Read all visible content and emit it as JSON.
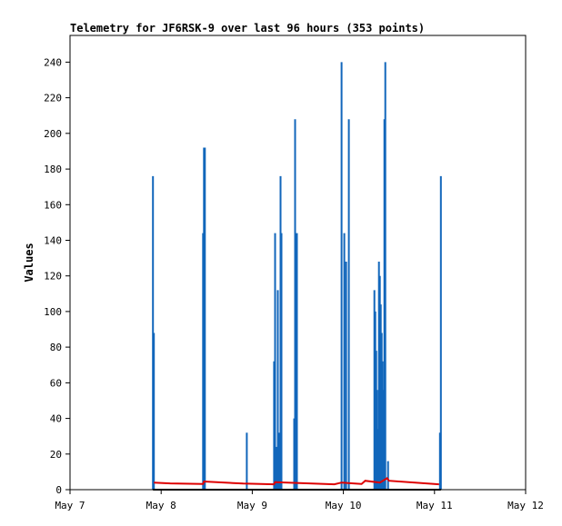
{
  "chart_data": {
    "type": "bar",
    "title": "Telemetry for JF6RSK-9 over last 96 hours (353 points)",
    "ylabel": "Values",
    "xlabel": "",
    "x_ticks": [
      "May 7",
      "May 8",
      "May 9",
      "May 10",
      "May 11",
      "May 12"
    ],
    "x_range_days": [
      7,
      12
    ],
    "y_ticks": [
      0,
      20,
      40,
      60,
      80,
      100,
      120,
      140,
      160,
      180,
      200,
      220,
      240
    ],
    "ylim": [
      0,
      255
    ],
    "grid": false,
    "legend": "none",
    "colors": {
      "spikes": "#1166bb",
      "baseline": "#dd0000",
      "zero": "#000000",
      "frame": "#000000"
    },
    "series": [
      {
        "style": "spikes",
        "points": [
          [
            7.91,
            176
          ],
          [
            7.92,
            88
          ],
          [
            8.46,
            144
          ],
          [
            8.47,
            192
          ],
          [
            8.48,
            192
          ],
          [
            8.94,
            32
          ],
          [
            9.24,
            72
          ],
          [
            9.25,
            144
          ],
          [
            9.27,
            24
          ],
          [
            9.28,
            112
          ],
          [
            9.29,
            32
          ],
          [
            9.31,
            176
          ],
          [
            9.32,
            144
          ],
          [
            9.46,
            40
          ],
          [
            9.47,
            208
          ],
          [
            9.49,
            144
          ],
          [
            9.98,
            240
          ],
          [
            10.01,
            144
          ],
          [
            10.03,
            128
          ],
          [
            10.06,
            208
          ],
          [
            10.34,
            112
          ],
          [
            10.35,
            100
          ],
          [
            10.36,
            78
          ],
          [
            10.37,
            56
          ],
          [
            10.38,
            34
          ],
          [
            10.39,
            128
          ],
          [
            10.4,
            120
          ],
          [
            10.41,
            104
          ],
          [
            10.42,
            88
          ],
          [
            10.43,
            72
          ],
          [
            10.44,
            56
          ],
          [
            10.45,
            208
          ],
          [
            10.46,
            240
          ],
          [
            10.49,
            16
          ],
          [
            11.06,
            32
          ],
          [
            11.07,
            176
          ]
        ]
      },
      {
        "style": "baseline",
        "points": [
          [
            7.92,
            4
          ],
          [
            8.1,
            3.5
          ],
          [
            8.46,
            3.2
          ],
          [
            8.47,
            4.6
          ],
          [
            8.9,
            3.4
          ],
          [
            9.24,
            3
          ],
          [
            9.25,
            4.2
          ],
          [
            9.9,
            3
          ],
          [
            9.98,
            4
          ],
          [
            10.2,
            3.2
          ],
          [
            10.24,
            5
          ],
          [
            10.4,
            4
          ],
          [
            10.44,
            5.2
          ],
          [
            10.48,
            6.5
          ],
          [
            10.5,
            5
          ],
          [
            11.05,
            3
          ]
        ]
      },
      {
        "style": "zero",
        "points": [
          [
            7.91,
            0
          ],
          [
            11.07,
            0
          ]
        ]
      }
    ]
  }
}
